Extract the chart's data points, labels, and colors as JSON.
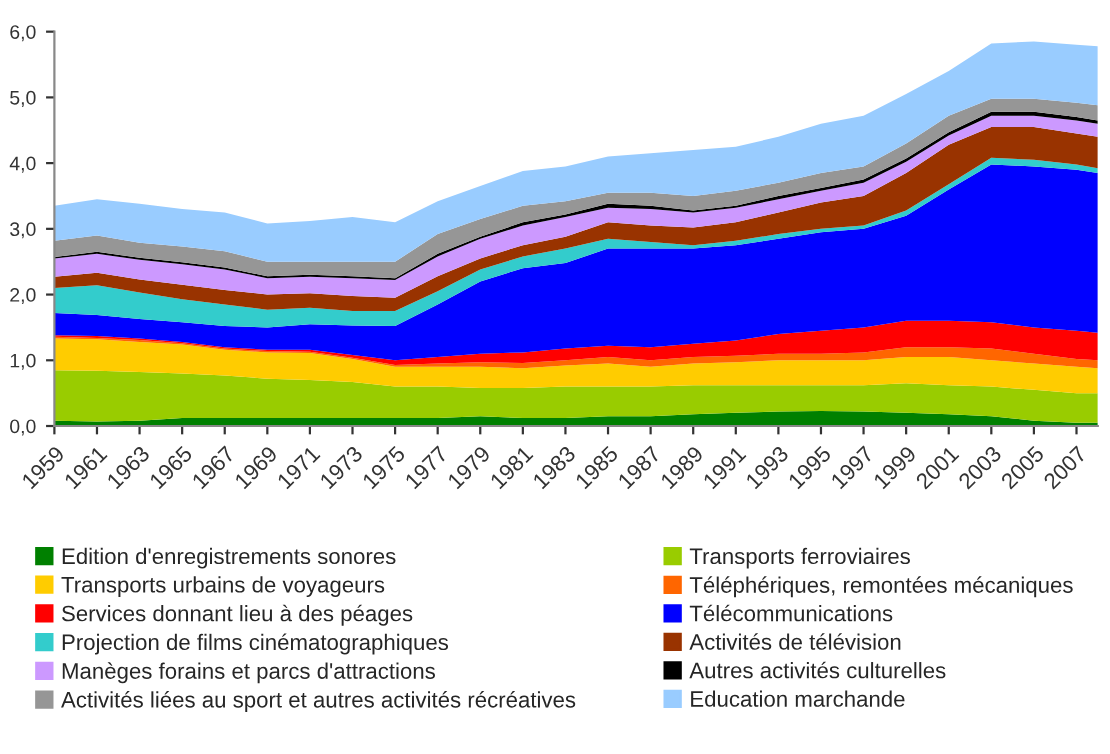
{
  "chart_data": {
    "type": "area",
    "stacked": true,
    "x": [
      1959,
      1961,
      1963,
      1965,
      1967,
      1969,
      1971,
      1973,
      1975,
      1977,
      1979,
      1981,
      1983,
      1985,
      1987,
      1989,
      1991,
      1993,
      1995,
      1997,
      1999,
      2001,
      2003,
      2005,
      2007,
      2008
    ],
    "xlim": [
      1959,
      2008
    ],
    "xticks": [
      1959,
      1961,
      1963,
      1965,
      1967,
      1969,
      1971,
      1973,
      1975,
      1977,
      1979,
      1981,
      1983,
      1985,
      1987,
      1989,
      1991,
      1993,
      1995,
      1997,
      1999,
      2001,
      2003,
      2005,
      2007
    ],
    "ylim": [
      0,
      6
    ],
    "yticks": [
      {
        "value": 0,
        "label": "0,0"
      },
      {
        "value": 1,
        "label": "1,0"
      },
      {
        "value": 2,
        "label": "2,0"
      },
      {
        "value": 3,
        "label": "3,0"
      },
      {
        "value": 4,
        "label": "4,0"
      },
      {
        "value": 5,
        "label": "5,0"
      },
      {
        "value": 6,
        "label": "6,0"
      }
    ],
    "grid": false,
    "legend": "bottom",
    "series": [
      {
        "name": "Edition d'enregistrements sonores",
        "color": "#008000",
        "values": [
          0.08,
          0.07,
          0.08,
          0.12,
          0.12,
          0.12,
          0.12,
          0.12,
          0.12,
          0.12,
          0.15,
          0.12,
          0.12,
          0.15,
          0.15,
          0.18,
          0.2,
          0.22,
          0.23,
          0.22,
          0.2,
          0.18,
          0.15,
          0.08,
          0.05,
          0.05
        ]
      },
      {
        "name": "Transports ferroviaires",
        "color": "#99cc00",
        "values": [
          0.77,
          0.77,
          0.74,
          0.68,
          0.65,
          0.6,
          0.58,
          0.55,
          0.48,
          0.48,
          0.43,
          0.46,
          0.48,
          0.45,
          0.45,
          0.44,
          0.42,
          0.4,
          0.39,
          0.4,
          0.45,
          0.44,
          0.45,
          0.47,
          0.45,
          0.45
        ]
      },
      {
        "name": "Transports urbains de voyageurs",
        "color": "#ffcc00",
        "values": [
          0.48,
          0.48,
          0.46,
          0.44,
          0.39,
          0.4,
          0.41,
          0.35,
          0.3,
          0.3,
          0.32,
          0.3,
          0.32,
          0.35,
          0.3,
          0.33,
          0.35,
          0.38,
          0.38,
          0.38,
          0.4,
          0.43,
          0.4,
          0.4,
          0.4,
          0.38
        ]
      },
      {
        "name": "Téléphériques, remontées mécaniques",
        "color": "#ff6600",
        "values": [
          0.03,
          0.02,
          0.03,
          0.02,
          0.02,
          0.02,
          0.02,
          0.02,
          0.03,
          0.05,
          0.07,
          0.08,
          0.08,
          0.1,
          0.1,
          0.1,
          0.1,
          0.1,
          0.1,
          0.12,
          0.15,
          0.15,
          0.18,
          0.15,
          0.12,
          0.12
        ]
      },
      {
        "name": "Services donnant lieu à des péages",
        "color": "#ff0000",
        "values": [
          0.02,
          0.03,
          0.02,
          0.02,
          0.02,
          0.02,
          0.03,
          0.04,
          0.07,
          0.1,
          0.13,
          0.16,
          0.18,
          0.17,
          0.2,
          0.2,
          0.23,
          0.3,
          0.35,
          0.38,
          0.4,
          0.4,
          0.4,
          0.4,
          0.43,
          0.42
        ]
      },
      {
        "name": "Télécommunications",
        "color": "#0000ff",
        "values": [
          0.34,
          0.32,
          0.3,
          0.3,
          0.32,
          0.34,
          0.39,
          0.45,
          0.52,
          0.8,
          1.1,
          1.28,
          1.3,
          1.48,
          1.5,
          1.45,
          1.45,
          1.45,
          1.5,
          1.5,
          1.6,
          2.0,
          2.4,
          2.45,
          2.45,
          2.43
        ]
      },
      {
        "name": "Projection de films cinématographiques",
        "color": "#33cccc",
        "values": [
          0.38,
          0.45,
          0.4,
          0.35,
          0.33,
          0.27,
          0.25,
          0.22,
          0.23,
          0.2,
          0.18,
          0.18,
          0.22,
          0.15,
          0.1,
          0.05,
          0.07,
          0.07,
          0.05,
          0.05,
          0.08,
          0.08,
          0.1,
          0.1,
          0.08,
          0.07
        ]
      },
      {
        "name": "Activités de télévision",
        "color": "#993300",
        "values": [
          0.17,
          0.19,
          0.2,
          0.22,
          0.22,
          0.23,
          0.22,
          0.23,
          0.2,
          0.23,
          0.17,
          0.17,
          0.18,
          0.25,
          0.25,
          0.27,
          0.28,
          0.33,
          0.4,
          0.45,
          0.57,
          0.6,
          0.47,
          0.5,
          0.47,
          0.48
        ]
      },
      {
        "name": "Manèges forains et parcs d'attractions",
        "color": "#cc99ff",
        "values": [
          0.28,
          0.29,
          0.3,
          0.31,
          0.31,
          0.25,
          0.25,
          0.27,
          0.27,
          0.3,
          0.3,
          0.3,
          0.3,
          0.22,
          0.25,
          0.23,
          0.22,
          0.2,
          0.18,
          0.2,
          0.17,
          0.14,
          0.17,
          0.17,
          0.2,
          0.2
        ]
      },
      {
        "name": "Autres activités culturelles",
        "color": "#000000",
        "values": [
          0.02,
          0.03,
          0.03,
          0.03,
          0.03,
          0.03,
          0.03,
          0.03,
          0.03,
          0.04,
          0.03,
          0.05,
          0.04,
          0.06,
          0.05,
          0.03,
          0.03,
          0.05,
          0.04,
          0.05,
          0.05,
          0.05,
          0.06,
          0.06,
          0.05,
          0.05
        ]
      },
      {
        "name": "Activités liées au sport et autres activités récréatives",
        "color": "#969696",
        "values": [
          0.25,
          0.25,
          0.23,
          0.24,
          0.25,
          0.22,
          0.2,
          0.22,
          0.25,
          0.3,
          0.27,
          0.25,
          0.2,
          0.17,
          0.2,
          0.22,
          0.23,
          0.2,
          0.23,
          0.2,
          0.23,
          0.25,
          0.2,
          0.2,
          0.22,
          0.23
        ]
      },
      {
        "name": "Education marchande",
        "color": "#99ccff",
        "values": [
          0.53,
          0.55,
          0.59,
          0.57,
          0.59,
          0.58,
          0.62,
          0.68,
          0.6,
          0.5,
          0.5,
          0.53,
          0.53,
          0.55,
          0.6,
          0.7,
          0.67,
          0.7,
          0.75,
          0.77,
          0.75,
          0.68,
          0.84,
          0.87,
          0.88,
          0.9
        ]
      }
    ]
  }
}
